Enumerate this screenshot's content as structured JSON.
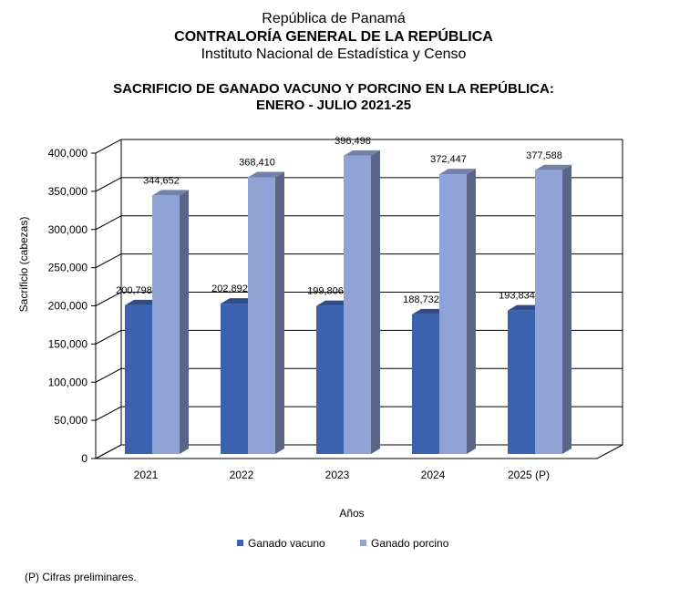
{
  "header": {
    "line1": "República de Panamá",
    "line2": "CONTRALORÍA GENERAL DE LA REPÚBLICA",
    "line3": "Instituto Nacional de Estadística y Censo"
  },
  "chart_data": {
    "type": "bar",
    "title": "SACRIFICIO DE GANADO VACUNO Y PORCINO EN LA REPÚBLICA:",
    "subtitle": "ENERO - JULIO 2021-25",
    "categories": [
      "2021",
      "2022",
      "2023",
      "2024",
      "2025 (P)"
    ],
    "series": [
      {
        "name": "Ganado vacuno",
        "color": "#3a62ae",
        "values": [
          200798,
          202892,
          199806,
          188732,
          193834
        ],
        "labels": [
          "200,798",
          "202,892",
          "199,806",
          "188,732",
          "193,834"
        ]
      },
      {
        "name": "Ganado porcino",
        "color": "#8fa3d6",
        "values": [
          344652,
          368410,
          396498,
          372447,
          377588
        ],
        "labels": [
          "344,652",
          "368,410",
          "396,498",
          "372,447",
          "377,588"
        ]
      }
    ],
    "ylim": [
      0,
      400000
    ],
    "yticks": [
      "0",
      "50,000",
      "100,000",
      "150,000",
      "200,000",
      "250,000",
      "300,000",
      "350,000",
      "400,000"
    ],
    "xlabel": "Años",
    "ylabel": "Sacrificio (cabezas)",
    "legend_position": "bottom",
    "grid": true
  },
  "footnote": "(P) Cifras preliminares."
}
